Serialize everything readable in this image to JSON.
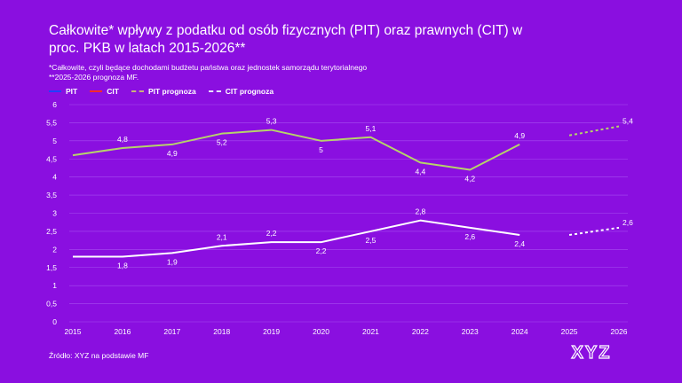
{
  "title": "Całkowite* wpływy z podatku od osób fizycznych (PIT) oraz prawnych (CIT) w proc. PKB w latach 2015-2026**",
  "notes": [
    "*Całkowite, czyli będące dochodami budżetu państwa oraz jednostek samorządu terytorialnego",
    "**2025-2026 prognoza MF."
  ],
  "legend": [
    {
      "label": "PIT",
      "color": "#1f3fff",
      "dashed": false
    },
    {
      "label": "CIT",
      "color": "#ff2a2a",
      "dashed": false
    },
    {
      "label": "PIT prognoza",
      "color": "#c9b27a",
      "dashed": true
    },
    {
      "label": "CIT prognoza",
      "color": "#e6e0ff",
      "dashed": true
    }
  ],
  "source": "Źródło: XYZ na podstawie MF",
  "logo_text": "XYZ",
  "colors": {
    "background": "#8a0fe0",
    "pit_line": "#b6d36a",
    "cit_line": "#ffffff",
    "grid": "#a64ef0"
  },
  "chart_data": {
    "type": "line",
    "x": [
      "2015",
      "2016",
      "2017",
      "2018",
      "2019",
      "2020",
      "2021",
      "2022",
      "2023",
      "2024",
      "2025",
      "2026"
    ],
    "ylim": [
      0,
      6
    ],
    "yticks": [
      "0",
      "0,5",
      "1",
      "1,5",
      "2",
      "2,5",
      "3",
      "3,5",
      "4",
      "4,5",
      "5",
      "5,5",
      "6"
    ],
    "grid": true,
    "legend_position": "top-left",
    "series": [
      {
        "key": "pit",
        "values": [
          4.6,
          4.8,
          4.9,
          5.2,
          5.3,
          5.0,
          5.1,
          4.4,
          4.2,
          4.9,
          null,
          null
        ],
        "labels": [
          "",
          "4,8",
          "4,9",
          "5,2",
          "5,3",
          "5",
          "5,1",
          "4,4",
          "4,2",
          "4,9",
          "",
          ""
        ],
        "label_pos": [
          "",
          "above",
          "below",
          "below",
          "above",
          "below",
          "above",
          "below",
          "below",
          "above",
          "",
          ""
        ]
      },
      {
        "key": "cit",
        "values": [
          1.8,
          1.8,
          1.9,
          2.1,
          2.2,
          2.2,
          2.5,
          2.8,
          2.6,
          2.4,
          null,
          null
        ],
        "labels": [
          "",
          "1,8",
          "1,9",
          "2,1",
          "2,2",
          "2,2",
          "2,5",
          "2,8",
          "2,6",
          "2,4",
          "",
          ""
        ],
        "label_pos": [
          "",
          "below",
          "below",
          "above",
          "above",
          "below",
          "below",
          "above",
          "below",
          "below",
          "",
          ""
        ]
      },
      {
        "key": "pit_forecast",
        "name": "PIT prognoza",
        "values": [
          null,
          null,
          null,
          null,
          null,
          null,
          null,
          null,
          null,
          null,
          5.15,
          5.4
        ],
        "labels": [
          "",
          "",
          "",
          "",
          "",
          "",
          "",
          "",
          "",
          "",
          "",
          "5,4"
        ],
        "label_pos": [
          "",
          "",
          "",
          "",
          "",
          "",
          "",
          "",
          "",
          "",
          "",
          "right"
        ]
      },
      {
        "key": "cit_forecast",
        "name": "CIT prognoza",
        "values": [
          null,
          null,
          null,
          null,
          null,
          null,
          null,
          null,
          null,
          null,
          2.4,
          2.6
        ],
        "labels": [
          "",
          "",
          "",
          "",
          "",
          "",
          "",
          "",
          "",
          "",
          "",
          "2,6"
        ],
        "label_pos": [
          "",
          "",
          "",
          "",
          "",
          "",
          "",
          "",
          "",
          "",
          "",
          "right"
        ]
      }
    ]
  }
}
